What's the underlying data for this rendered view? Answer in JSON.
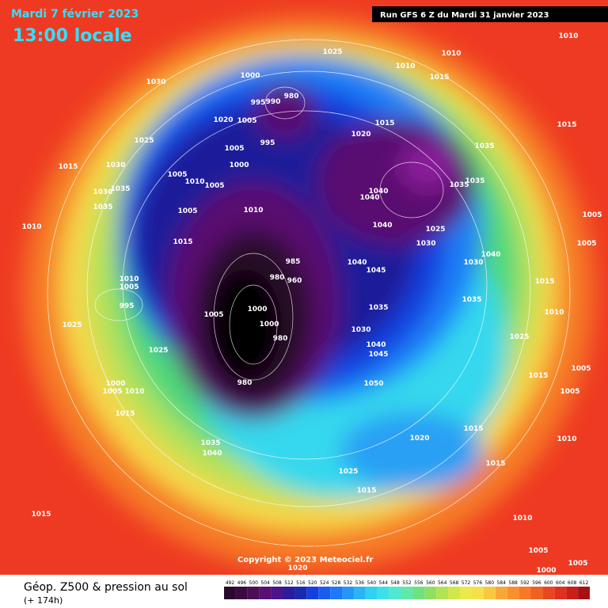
{
  "header": {
    "date": "Mardi 7 février 2023",
    "time": "13:00 locale",
    "run": "Run GFS 6 Z du Mardi 31 janvier 2023"
  },
  "footer": {
    "title": "Géop. Z500 & pression au sol",
    "lead": "(+ 174h)",
    "copyright": "Copyright © 2023 Meteociel.fr"
  },
  "scale": {
    "values": [
      492,
      496,
      500,
      504,
      508,
      512,
      516,
      520,
      524,
      528,
      532,
      536,
      540,
      544,
      548,
      552,
      556,
      560,
      564,
      568,
      572,
      576,
      580,
      584,
      588,
      592,
      596,
      600,
      604,
      608,
      612
    ],
    "colors": [
      "#2a0a2a",
      "#3a0c3e",
      "#4a0e55",
      "#5a1070",
      "#4a148a",
      "#2a1c9a",
      "#1a2ab0",
      "#1440e0",
      "#1a5cf0",
      "#1e78f8",
      "#2496f8",
      "#2ab4f4",
      "#30d0f0",
      "#3ee0e8",
      "#50e8d0",
      "#60e8a8",
      "#70e080",
      "#90e060",
      "#b0e450",
      "#d0e848",
      "#eaea48",
      "#f6e04a",
      "#f8c840",
      "#f8a838",
      "#f89030",
      "#f87828",
      "#f06020",
      "#e84820",
      "#e03020",
      "#c82018",
      "#a81010"
    ]
  },
  "pressure_labels": [
    1010,
    1025,
    1010,
    1010,
    1015,
    1030,
    1000,
    980,
    995,
    990,
    1020,
    1005,
    1015,
    1020,
    1015,
    1025,
    995,
    1035,
    1005,
    1000,
    1015,
    1030,
    1005,
    1010,
    1005,
    1035,
    1035,
    1030,
    1035,
    1040,
    1040,
    1035,
    1005,
    1010,
    1005,
    1010,
    1040,
    1025,
    1015,
    1030,
    1005,
    1040,
    1040,
    985,
    1030,
    1045,
    980,
    960,
    1010,
    1005,
    1015,
    995,
    1035,
    1035,
    1000,
    1005,
    1010,
    1025,
    1030,
    1000,
    980,
    1025,
    1040,
    1045,
    1025,
    1005,
    1015,
    1050,
    980,
    1000,
    1005,
    1010,
    1005,
    1015,
    1020,
    1015,
    1010,
    1035,
    1040,
    1015,
    1025,
    1015,
    1015,
    1010,
    1005,
    1020,
    1000,
    1005
  ]
}
